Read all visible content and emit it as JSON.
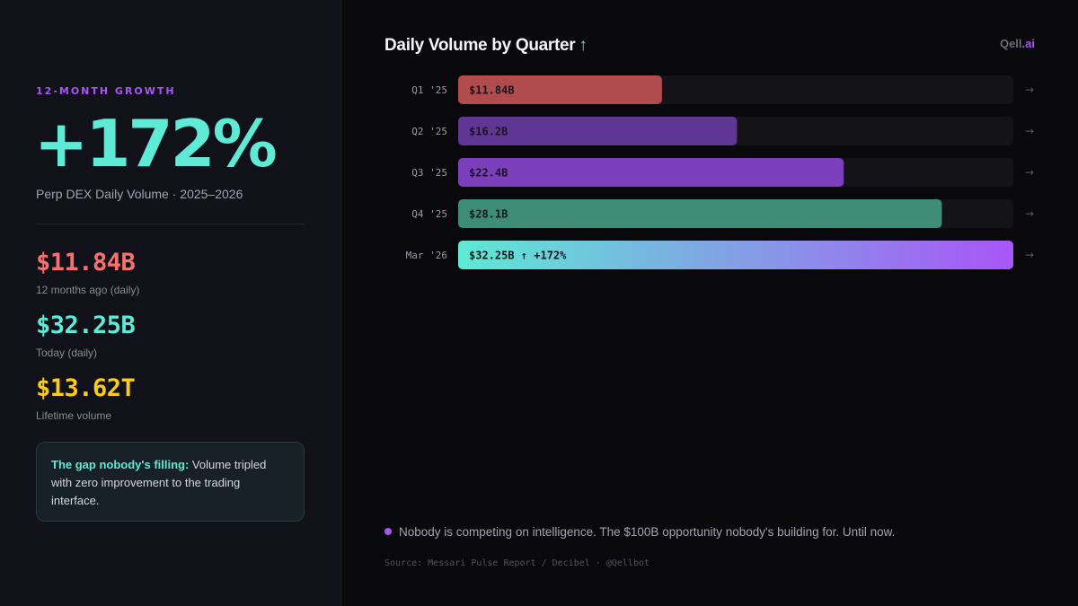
{
  "sidebar": {
    "eyebrow": "12-MONTH GROWTH",
    "hero_value": "+172%",
    "hero_subtitle": "Perp DEX Daily Volume · 2025–2026",
    "stats": [
      {
        "value": "$11.84B",
        "label": "12 months ago (daily)",
        "color": "#f87171"
      },
      {
        "value": "$32.25B",
        "label": "Today (daily)",
        "color": "#5eead4"
      },
      {
        "value": "$13.62T",
        "label": "Lifetime volume",
        "color": "#facc15"
      }
    ],
    "callout": {
      "lead": "The gap nobody's filling:",
      "text": " Volume tripled with zero improvement to the trading interface."
    }
  },
  "main": {
    "title": "Daily Volume by Quarter",
    "title_icon": "arrow-up-icon",
    "title_icon_glyph": "↑",
    "brand_name": "Qell",
    "brand_suffix": ".ai",
    "footnote": "Nobody is competing on intelligence. The $100B opportunity nobody's building for. Until now.",
    "source": "Source: Messari Pulse Report / Decibel · @Qellbot"
  },
  "chart_data": {
    "type": "bar",
    "orientation": "horizontal",
    "categories": [
      "Q1 '25",
      "Q2 '25",
      "Q3 '25",
      "Q4 '25",
      "Mar '26"
    ],
    "values": [
      11.84,
      16.2,
      22.4,
      28.1,
      32.25
    ],
    "labels": [
      "$11.84B",
      "$16.2B",
      "$22.4B",
      "$28.1B",
      "$32.25B ↑ +172%"
    ],
    "colors": [
      "#b04b4e",
      "#5f3694",
      "#7b3fbc",
      "#3d8c76",
      "gradient"
    ],
    "gradient": [
      "#5eead4",
      "#a855f7"
    ],
    "row_arrow": "→",
    "xlim": [
      0,
      32.25
    ],
    "title": "Daily Volume by Quarter",
    "grid": false
  }
}
